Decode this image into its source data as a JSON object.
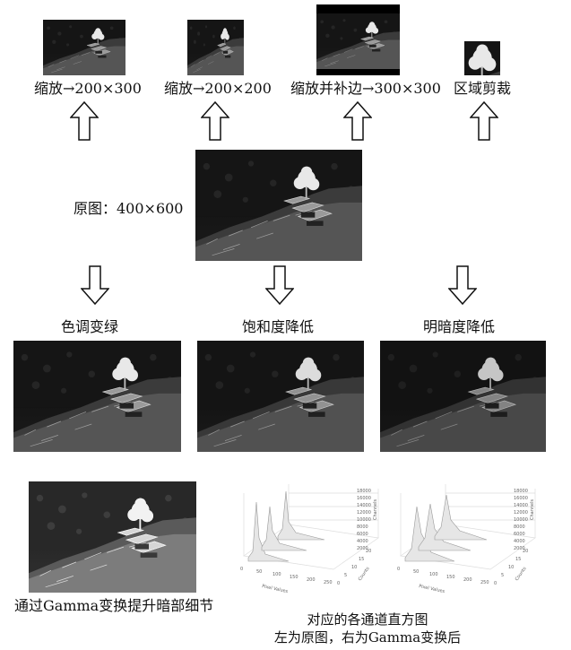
{
  "top_labels": {
    "scale_200x300": "缩放→200×300",
    "scale_200x200": "缩放→200×200",
    "scale_pad_300x300": "缩放并补边→300×300",
    "region_crop": "区域剪裁"
  },
  "original_label": "原图：400×600",
  "middle_labels": {
    "tone_green": "色调变绿",
    "saturation_down": "饱和度降低",
    "brightness_down": "明暗度降低"
  },
  "bottom_left_label": "通过Gamma变换提升暗部细节",
  "hist_caption": {
    "line1": "对应的各通道直方图",
    "line2": "左为原图，右为Gamma变换后"
  },
  "hist_axes": {
    "xlabel": "Pixel Values",
    "ylabel": "Counts",
    "zlabel": "Channels",
    "x_ticks": [
      "0",
      "50",
      "100",
      "150",
      "200",
      "250"
    ],
    "y_ticks": [
      "0",
      "5",
      "10",
      "15",
      "20"
    ],
    "z_ticks": [
      "2000",
      "4000",
      "6000",
      "8000",
      "10000",
      "12000",
      "14000",
      "16000",
      "18000"
    ]
  },
  "icons": {
    "up_arrow": "hollow-up-arrow-icon",
    "down_arrow": "hollow-down-arrow-icon"
  }
}
